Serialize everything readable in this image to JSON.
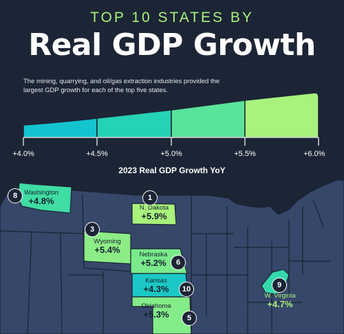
{
  "header": {
    "kicker": "TOP 10 STATES BY",
    "title": "Real GDP Growth",
    "description": "The mining, quarrying, and oil/gas extraction industries provided the largest GDP growth for each of the top five states."
  },
  "legend": {
    "axis_title": "2023 Real GDP Growth YoY",
    "ticks": [
      "+4.0%",
      "+4.5%",
      "+5.0%",
      "+5.5%",
      "+6.0%"
    ],
    "tick_values": [
      4.0,
      4.5,
      5.0,
      5.5,
      6.0
    ],
    "colors": [
      "#13c4cf",
      "#26d2b6",
      "#5ae39b",
      "#a8f27d"
    ]
  },
  "colors": {
    "background": "#1c2535",
    "base_state": "#36476a",
    "state_border": "#1a2332",
    "accent": "#a8f27d"
  },
  "states": [
    {
      "rank": "8",
      "name": "Washington",
      "value": "+4.8%",
      "growth": 4.8,
      "color": "#3fdca3"
    },
    {
      "rank": "1",
      "name": "N. Dakota",
      "value": "+5.9%",
      "growth": 5.9,
      "color": "#a8f27d"
    },
    {
      "rank": "3",
      "name": "Wyoming",
      "value": "+5.4%",
      "growth": 5.4,
      "color": "#8ced86"
    },
    {
      "rank": "6",
      "name": "Nebraska",
      "value": "+5.2%",
      "growth": 5.2,
      "color": "#7aea8a"
    },
    {
      "rank": "10",
      "name": "Kansas",
      "value": "+4.3%",
      "growth": 4.3,
      "color": "#1bc8c6"
    },
    {
      "rank": "5",
      "name": "Oklahoma",
      "value": "+5.3%",
      "growth": 5.3,
      "color": "#84ec88"
    },
    {
      "rank": "9",
      "name": "W. Virginia",
      "value": "+4.7%",
      "growth": 4.7,
      "color": "#34d9ae"
    }
  ]
}
